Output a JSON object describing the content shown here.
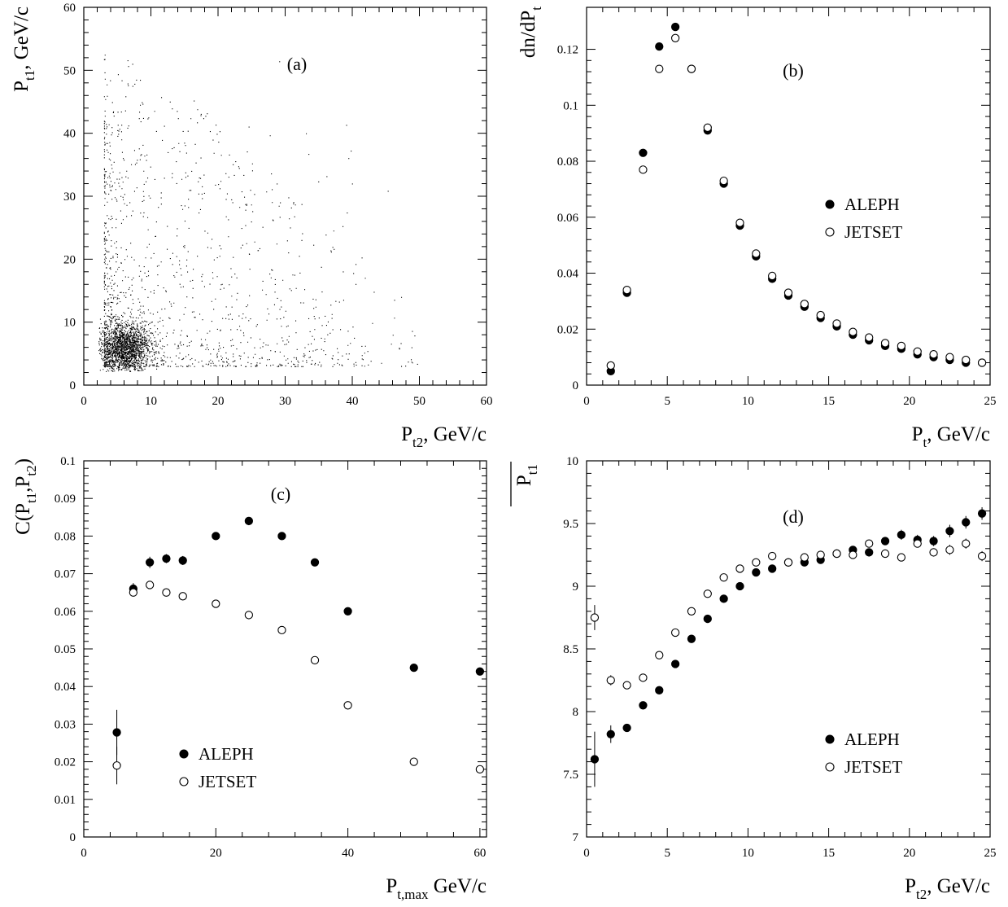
{
  "figure": {
    "background": "#ffffff",
    "foreground": "#000000"
  },
  "chart_data": [
    {
      "id": "a",
      "type": "scatter",
      "panel_label": "(a)",
      "xlabel": {
        "main": "P",
        "sub": "t2",
        "suffix": ", GeV/c"
      },
      "ylabel": {
        "main": "P",
        "sub": "t1",
        "suffix": ", GeV/c"
      },
      "xlim": [
        0,
        60
      ],
      "ylim": [
        0,
        60
      ],
      "xticks": [
        0,
        10,
        20,
        30,
        40,
        50,
        60
      ],
      "yticks": [
        0,
        10,
        20,
        30,
        40,
        50,
        60
      ],
      "grid": false,
      "density": {
        "description_points": "dense two-jet transverse momentum correlation cloud",
        "peak": [
          6,
          6
        ],
        "approx_point_count": 9000
      }
    },
    {
      "id": "b",
      "type": "scatter",
      "panel_label": "(b)",
      "xlabel": {
        "main": "P",
        "sub": "t",
        "suffix": ", GeV/c"
      },
      "ylabel": {
        "main": "dn/dP",
        "sub": "t",
        "suffix": ""
      },
      "xlim": [
        0,
        25
      ],
      "ylim": [
        0,
        0.135
      ],
      "xticks": [
        0,
        5,
        10,
        15,
        20,
        25
      ],
      "yticks": [
        0,
        0.02,
        0.04,
        0.06,
        0.08,
        0.1,
        0.12
      ],
      "ytick_labels": [
        "0",
        "0.02",
        "0.04",
        "0.06",
        "0.08",
        "0.1",
        "0.12"
      ],
      "grid": false,
      "legend_position": "right-middle",
      "series": [
        {
          "name": "ALEPH",
          "marker": "filled-circle",
          "x": [
            1.5,
            2.5,
            3.5,
            4.5,
            5.5,
            6.5,
            7.5,
            8.5,
            9.5,
            10.5,
            11.5,
            12.5,
            13.5,
            14.5,
            15.5,
            16.5,
            17.5,
            18.5,
            19.5,
            20.5,
            21.5,
            22.5,
            23.5,
            24.5
          ],
          "y": [
            0.005,
            0.033,
            0.083,
            0.121,
            0.128,
            0.113,
            0.091,
            0.072,
            0.057,
            0.046,
            0.038,
            0.032,
            0.028,
            0.024,
            0.021,
            0.018,
            0.016,
            0.014,
            0.013,
            0.011,
            0.01,
            0.009,
            0.008,
            0.008
          ]
        },
        {
          "name": "JETSET",
          "marker": "open-circle",
          "x": [
            1.5,
            2.5,
            3.5,
            4.5,
            5.5,
            6.5,
            7.5,
            8.5,
            9.5,
            10.5,
            11.5,
            12.5,
            13.5,
            14.5,
            15.5,
            16.5,
            17.5,
            18.5,
            19.5,
            20.5,
            21.5,
            22.5,
            23.5,
            24.5
          ],
          "y": [
            0.007,
            0.034,
            0.077,
            0.113,
            0.124,
            0.113,
            0.092,
            0.073,
            0.058,
            0.047,
            0.039,
            0.033,
            0.029,
            0.025,
            0.022,
            0.019,
            0.017,
            0.015,
            0.014,
            0.012,
            0.011,
            0.01,
            0.009,
            0.008
          ]
        }
      ]
    },
    {
      "id": "c",
      "type": "scatter",
      "panel_label": "(c)",
      "xlabel": {
        "main": "P",
        "sub": "t,max",
        "suffix": " GeV/c"
      },
      "ylabel": {
        "main": "C(P",
        "parts": [
          "C(P",
          "t1",
          ",P",
          "t2",
          ")"
        ]
      },
      "xlim": [
        0,
        61
      ],
      "ylim": [
        0,
        0.1
      ],
      "xticks": [
        0,
        20,
        40,
        60
      ],
      "yticks": [
        0,
        0.01,
        0.02,
        0.03,
        0.04,
        0.05,
        0.06,
        0.07,
        0.08,
        0.09,
        0.1
      ],
      "ytick_labels": [
        "0",
        "0.01",
        "0.02",
        "0.03",
        "0.04",
        "0.05",
        "0.06",
        "0.07",
        "0.08",
        "0.09",
        "0.1"
      ],
      "grid": false,
      "legend_position": "bottom-left",
      "series": [
        {
          "name": "ALEPH",
          "marker": "filled-circle",
          "x": [
            5,
            7.5,
            10,
            12.5,
            15,
            20,
            25,
            30,
            35,
            40,
            50,
            60
          ],
          "y": [
            0.0278,
            0.066,
            0.073,
            0.074,
            0.0735,
            0.08,
            0.084,
            0.08,
            0.073,
            0.06,
            0.045,
            0.044
          ],
          "yerr": [
            0.006,
            0.0015,
            0.0015,
            0.0012,
            0.0012,
            0.0008,
            0.0008,
            0.0007,
            0.0007,
            0.0008,
            0.0008,
            0.0008
          ]
        },
        {
          "name": "JETSET",
          "marker": "open-circle",
          "x": [
            5,
            7.5,
            10,
            12.5,
            15,
            20,
            25,
            30,
            35,
            40,
            50,
            60
          ],
          "y": [
            0.019,
            0.065,
            0.067,
            0.065,
            0.064,
            0.062,
            0.059,
            0.055,
            0.047,
            0.035,
            0.02,
            0.018
          ],
          "yerr": [
            0.005,
            0.001,
            0.001,
            0,
            0,
            0,
            0,
            0,
            0,
            0,
            0,
            0
          ]
        }
      ]
    },
    {
      "id": "d",
      "type": "scatter",
      "panel_label": "(d)",
      "xlabel": {
        "main": "P",
        "sub": "t2",
        "suffix": ", GeV/c"
      },
      "ylabel": {
        "main": "P",
        "sub": "t1",
        "overline": true
      },
      "xlim": [
        0,
        25
      ],
      "ylim": [
        7,
        10
      ],
      "xticks": [
        0,
        5,
        10,
        15,
        20,
        25
      ],
      "yticks": [
        7,
        7.5,
        8,
        8.5,
        9,
        9.5,
        10
      ],
      "ytick_labels": [
        "7",
        "7.5",
        "8",
        "8.5",
        "9",
        "9.5",
        "10"
      ],
      "grid": false,
      "legend_position": "bottom-right",
      "series": [
        {
          "name": "ALEPH",
          "marker": "filled-circle",
          "x": [
            0.5,
            1.5,
            2.5,
            3.5,
            4.5,
            5.5,
            6.5,
            7.5,
            8.5,
            9.5,
            10.5,
            11.5,
            12.5,
            13.5,
            14.5,
            15.5,
            16.5,
            17.5,
            18.5,
            19.5,
            20.5,
            21.5,
            22.5,
            23.5,
            24.5
          ],
          "y": [
            7.62,
            7.82,
            7.87,
            8.05,
            8.17,
            8.38,
            8.58,
            8.74,
            8.9,
            9.0,
            9.11,
            9.14,
            9.19,
            9.19,
            9.21,
            9.26,
            9.29,
            9.27,
            9.36,
            9.41,
            9.37,
            9.36,
            9.44,
            9.51,
            9.58
          ],
          "yerr": [
            0.22,
            0.07,
            0.03,
            0.02,
            0.02,
            0.02,
            0.02,
            0.02,
            0.02,
            0.02,
            0.02,
            0.02,
            0.02,
            0.02,
            0.02,
            0.02,
            0.02,
            0.03,
            0.03,
            0.04,
            0.04,
            0.04,
            0.05,
            0.05,
            0.05
          ]
        },
        {
          "name": "JETSET",
          "marker": "open-circle",
          "x": [
            0.5,
            1.5,
            2.5,
            3.5,
            4.5,
            5.5,
            6.5,
            7.5,
            8.5,
            9.5,
            10.5,
            11.5,
            12.5,
            13.5,
            14.5,
            15.5,
            16.5,
            17.5,
            18.5,
            19.5,
            20.5,
            21.5,
            22.5,
            23.5,
            24.5
          ],
          "y": [
            8.75,
            8.25,
            8.21,
            8.27,
            8.45,
            8.63,
            8.8,
            8.94,
            9.07,
            9.14,
            9.19,
            9.24,
            9.19,
            9.23,
            9.25,
            9.26,
            9.25,
            9.34,
            9.26,
            9.23,
            9.34,
            9.27,
            9.29,
            9.34,
            9.24
          ],
          "yerr": [
            0.1,
            0.04,
            0.02,
            0.02,
            0.02,
            0.02,
            0.02,
            0.02,
            0.02,
            0.02,
            0.02,
            0.02,
            0.02,
            0.02,
            0.02,
            0.02,
            0.02,
            0.02,
            0.02,
            0.02,
            0.03,
            0.03,
            0.04,
            0.04,
            0.04
          ]
        }
      ]
    }
  ]
}
